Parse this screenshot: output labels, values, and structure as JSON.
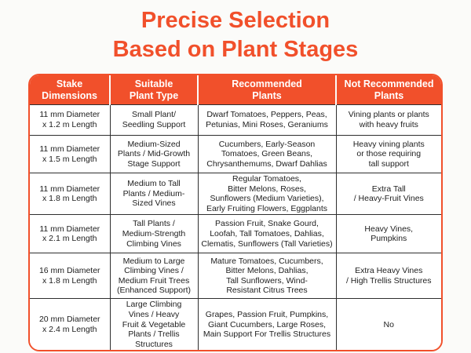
{
  "title": {
    "line1": "Precise Selection",
    "line2": "Based on Plant Stages"
  },
  "colors": {
    "accent_orange": "#F1502B",
    "header_text": "#FFFFFF",
    "body_text": "#1E1E1E",
    "grid_line": "#2E2E2E",
    "page_background": "#FBFBF9"
  },
  "table": {
    "headers": [
      "Stake\nDimensions",
      "Suitable\nPlant Type",
      "Recommended\nPlants",
      "Not Recommended\nPlants"
    ],
    "rows": [
      [
        "11 mm Diameter\nx 1.2 m Length",
        "Small Plant/\nSeedling Support",
        "Dwarf Tomatoes, Peppers, Peas,\nPetunias, Mini Roses, Geraniums",
        "Vining plants or plants\nwith heavy fruits"
      ],
      [
        "11 mm Diameter\nx 1.5 m Length",
        "Medium-Sized\nPlants / Mid-Growth\nStage Support",
        "Cucumbers, Early-Season\nTomatoes, Green Beans,\nChrysanthemums, Dwarf Dahlias",
        "Heavy vining plants\nor those requiring\ntall support"
      ],
      [
        "11 mm Diameter\nx 1.8 m Length",
        "Medium to Tall\nPlants / Medium-\nSized Vines",
        "Regular Tomatoes,\nBitter Melons, Roses,\nSunflowers (Medium Varieties),\nEarly Fruiting Flowers, Eggplants",
        "Extra Tall\n/ Heavy-Fruit Vines"
      ],
      [
        "11 mm Diameter\nx 2.1 m Length",
        "Tall Plants /\nMedium-Strength\nClimbing Vines",
        "Passion Fruit, Snake Gourd,\nLoofah, Tall Tomatoes, Dahlias,\nClematis, Sunflowers (Tall Varieties)",
        "Heavy Vines,\nPumpkins"
      ],
      [
        "16 mm Diameter\nx 1.8 m Length",
        "Medium to Large\nClimbing Vines /\nMedium Fruit Trees\n(Enhanced Support)",
        "Mature Tomatoes, Cucumbers,\nBitter Melons, Dahlias,\nTall Sunflowers, Wind-\nResistant Citrus Trees",
        "Extra Heavy Vines\n/ High Trellis Structures"
      ],
      [
        "20 mm Diameter\nx 2.4 m Length",
        "Large Climbing\nVines / Heavy\nFruit & Vegetable\nPlants / Trellis\nStructures",
        "Grapes, Passion Fruit, Pumpkins,\nGiant Cucumbers, Large Roses,\nMain Support For Trellis Structures",
        "No"
      ]
    ]
  }
}
